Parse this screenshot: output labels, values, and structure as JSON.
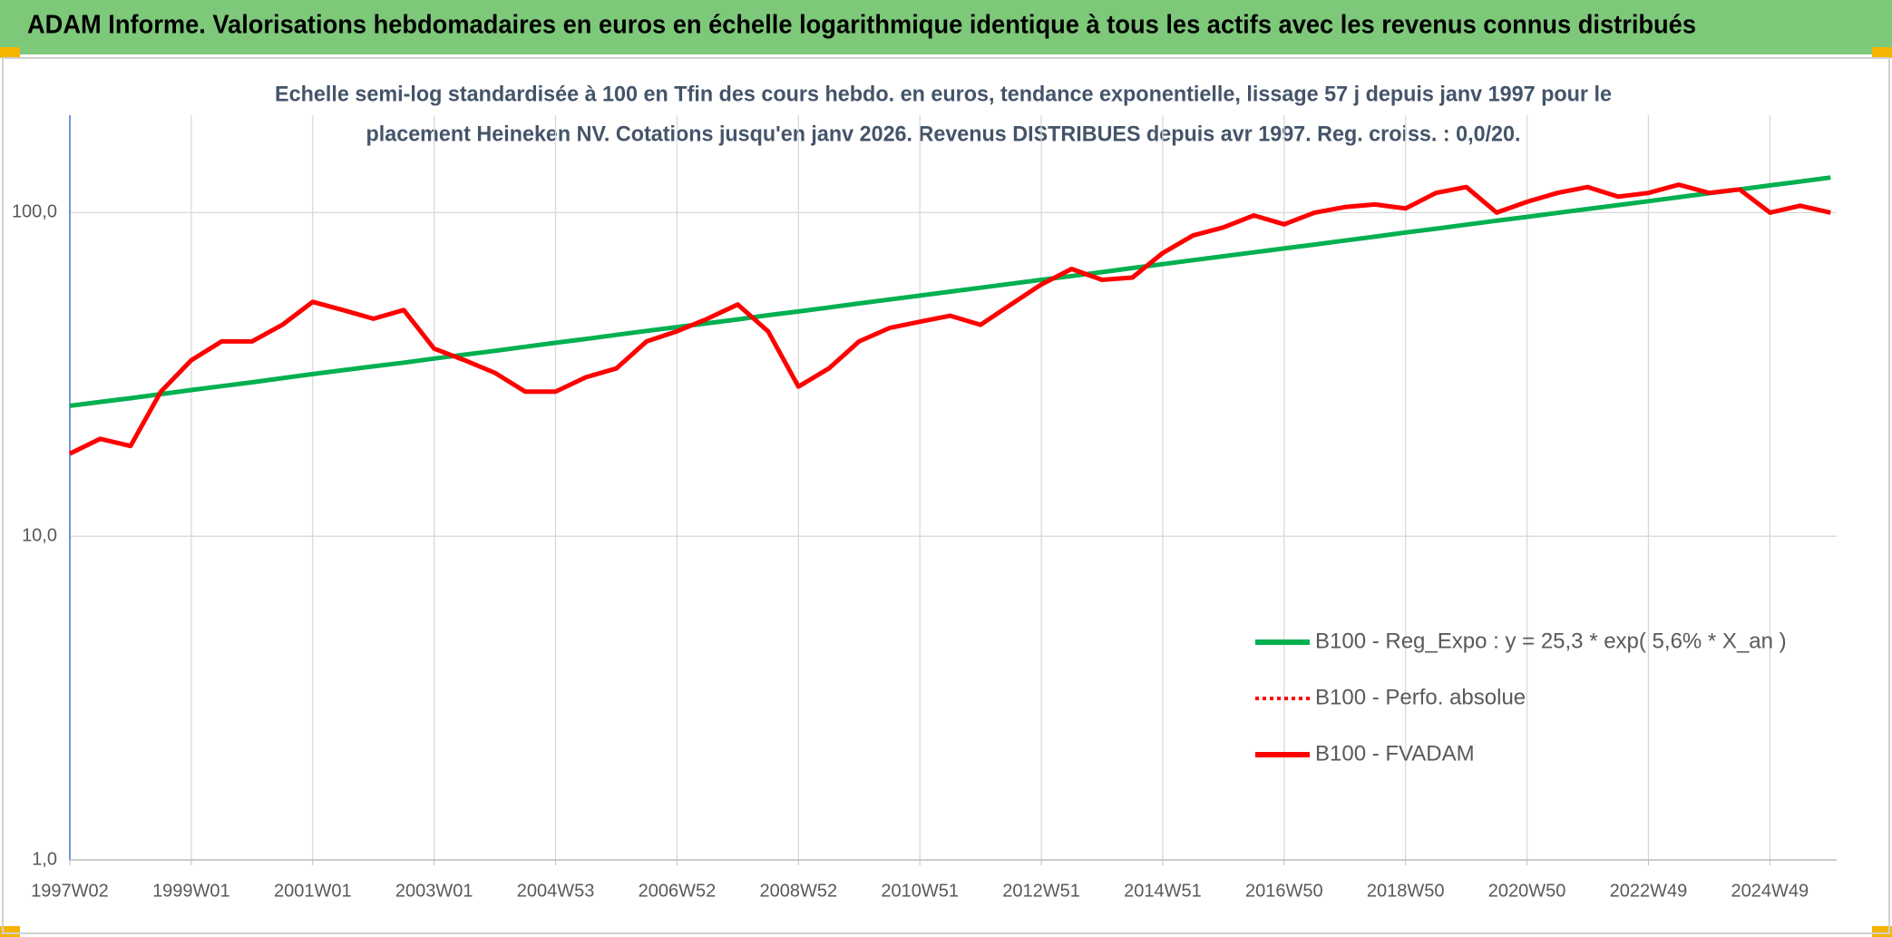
{
  "chart_data": {
    "type": "line",
    "title": "ADAM Informe. Valorisations hebdomadaires en euros en échelle logarithmique identique à tous les actifs avec les revenus connus distribués",
    "subtitle_lines": [
      "Echelle semi-log standardisée à 100 en Tfin des cours hebdo. en euros, tendance exponentielle, lissage 57 j depuis janv 1997 pour le",
      "placement Heineken NV. Cotations jusqu'en janv 2026. Revenus DISTRIBUES depuis avr 1997. Reg. croiss. : 0,0/20."
    ],
    "categories": [
      "1997W02",
      null,
      null,
      null,
      "1999W01",
      null,
      null,
      null,
      "2001W01",
      null,
      null,
      null,
      "2003W01",
      null,
      null,
      null,
      "2004W53",
      null,
      null,
      null,
      "2006W52",
      null,
      null,
      null,
      "2008W52",
      null,
      null,
      null,
      "2010W51",
      null,
      null,
      null,
      "2012W51",
      null,
      null,
      null,
      "2014W51",
      null,
      null,
      null,
      "2016W50",
      null,
      null,
      null,
      "2018W50",
      null,
      null,
      null,
      "2020W50",
      null,
      null,
      null,
      "2022W49",
      null,
      null,
      null,
      "2024W49",
      null,
      null
    ],
    "series": [
      {
        "name": "B100 - Reg_Expo : y = 25,3 * exp( 5,6% *  X_an )",
        "color": "#00b050",
        "style": "solid",
        "values": [
          25.3,
          26.0,
          26.7,
          27.5,
          28.3,
          29.1,
          29.9,
          30.8,
          31.7,
          32.6,
          33.5,
          34.4,
          35.4,
          36.4,
          37.4,
          38.5,
          39.6,
          40.7,
          41.9,
          43.1,
          44.3,
          45.5,
          46.8,
          48.2,
          49.5,
          50.9,
          52.4,
          53.9,
          55.4,
          57.0,
          58.6,
          60.3,
          62.0,
          63.7,
          65.5,
          67.4,
          69.3,
          71.3,
          73.3,
          75.4,
          77.5,
          79.7,
          82.0,
          84.3,
          86.8,
          89.2,
          91.8,
          94.4,
          97.0,
          99.8,
          102.6,
          105.5,
          108.5,
          111.6,
          114.8,
          118.0,
          121.4,
          124.8,
          128.4
        ]
      },
      {
        "name": "B100 - Perfo. absolue",
        "color": "#ff0000",
        "style": "dotted",
        "values": [
          18,
          20,
          19,
          28,
          35,
          40,
          40,
          45,
          53,
          50,
          47,
          50,
          38,
          35,
          32,
          28,
          28,
          31,
          33,
          40,
          43,
          47,
          52,
          43,
          29,
          33,
          40,
          44,
          46,
          48,
          45,
          52,
          60,
          67,
          62,
          63,
          75,
          85,
          90,
          98,
          92,
          100,
          104,
          106,
          103,
          115,
          120,
          100,
          108,
          115,
          120,
          112,
          115,
          122,
          115,
          118,
          100,
          105,
          100
        ]
      },
      {
        "name": "B100 - FVADAM",
        "color": "#ff0000",
        "style": "solid",
        "values": [
          18,
          20,
          19,
          28,
          35,
          40,
          40,
          45,
          53,
          50,
          47,
          50,
          38,
          35,
          32,
          28,
          28,
          31,
          33,
          40,
          43,
          47,
          52,
          43,
          29,
          33,
          40,
          44,
          46,
          48,
          45,
          52,
          60,
          67,
          62,
          63,
          75,
          85,
          90,
          98,
          92,
          100,
          104,
          106,
          103,
          115,
          120,
          100,
          108,
          115,
          120,
          112,
          115,
          122,
          115,
          118,
          100,
          105,
          100
        ]
      }
    ],
    "log_scale": true,
    "ylim": [
      1,
      200
    ],
    "yticks": [
      {
        "value": 1,
        "label": "1,0"
      },
      {
        "value": 10,
        "label": "10,0"
      },
      {
        "value": 100,
        "label": "100,0"
      }
    ],
    "grid": true,
    "legend": "lower right"
  }
}
